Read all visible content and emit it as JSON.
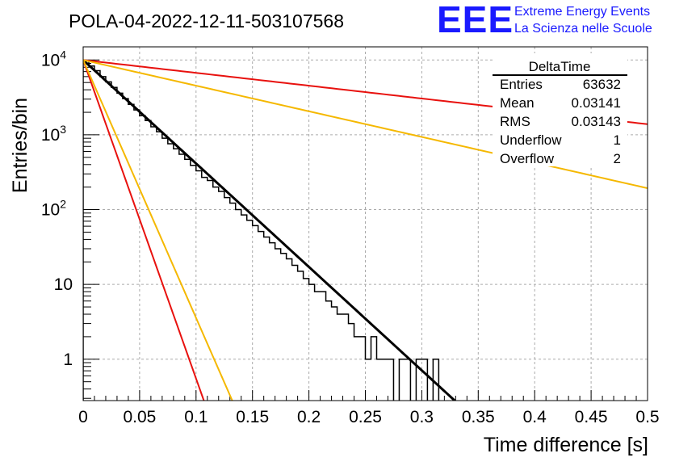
{
  "header": {
    "run_title": "POLA-04-2022-12-11-503107568",
    "logo_text": "EEE",
    "logo_line1": "Extreme Energy Events",
    "logo_line2": "La Scienza nelle Scuole"
  },
  "colors": {
    "logo_blue": "#1a1aff",
    "histogram": "#000000",
    "fit_black": "#000000",
    "line_red": "#e8110e",
    "line_yellow": "#f5b800",
    "grid": "#aaaaaa"
  },
  "stats_box": {
    "title": "DeltaTime",
    "rows": [
      {
        "label": "Entries",
        "value": "63632"
      },
      {
        "label": "Mean",
        "value": "0.03141"
      },
      {
        "label": "RMS",
        "value": "0.03143"
      },
      {
        "label": "Underflow",
        "value": "1"
      },
      {
        "label": "Overflow",
        "value": "2"
      }
    ]
  },
  "chart_data": {
    "type": "histogram",
    "title": "POLA-04-2022-12-11-503107568",
    "xlabel": "Time difference [s]",
    "ylabel": "Entries/bin",
    "xlim": [
      0,
      0.5
    ],
    "ylim": [
      0.28,
      15000
    ],
    "yscale": "log",
    "grid": true,
    "legend": "top-right statistics box",
    "x_ticks": [
      "0",
      "0.05",
      "0.1",
      "0.15",
      "0.2",
      "0.25",
      "0.3",
      "0.35",
      "0.4",
      "0.45",
      "0.5"
    ],
    "y_ticks": [
      {
        "value": 1,
        "base": "1",
        "exp": ""
      },
      {
        "value": 10,
        "base": "10",
        "exp": ""
      },
      {
        "value": 100,
        "base": "10",
        "exp": "2"
      },
      {
        "value": 1000,
        "base": "10",
        "exp": "3"
      },
      {
        "value": 10000,
        "base": "10",
        "exp": "4"
      }
    ],
    "histogram": {
      "bin_width": 0.005,
      "counts": [
        9800,
        8300,
        7200,
        6000,
        5100,
        4300,
        3600,
        3050,
        2550,
        2150,
        1800,
        1550,
        1280,
        1100,
        900,
        760,
        650,
        550,
        470,
        390,
        330,
        270,
        245,
        200,
        175,
        145,
        122,
        100,
        85,
        72,
        61,
        51,
        43,
        36,
        30,
        26,
        22,
        18,
        15,
        12,
        10,
        8,
        8,
        6,
        5,
        4,
        4,
        3,
        2,
        2,
        1,
        2,
        1,
        1,
        1,
        0,
        1,
        1,
        0,
        1,
        1,
        0,
        1,
        0
      ]
    },
    "series": [
      {
        "name": "",
        "color": "#000000",
        "type": "exponential",
        "y0": 10000,
        "tau": 0.0314,
        "x_range": [
          0,
          0.336
        ]
      },
      {
        "name": "",
        "color": "#e8110e",
        "type": "exponential",
        "y0": 10000,
        "tau": 0.0102,
        "x_range": [
          0,
          0.107
        ]
      },
      {
        "name": "",
        "color": "#f5b800",
        "type": "exponential",
        "y0": 10000,
        "tau": 0.0126,
        "x_range": [
          0,
          0.134
        ]
      },
      {
        "name": "",
        "color": "#e8110e",
        "type": "exponential",
        "y0": 10000,
        "tau": 0.2531,
        "x_range": [
          0,
          0.5
        ]
      },
      {
        "name": "",
        "color": "#f5b800",
        "type": "exponential",
        "y0": 10000,
        "tau": 0.1267,
        "x_range": [
          0,
          0.5
        ]
      }
    ]
  }
}
